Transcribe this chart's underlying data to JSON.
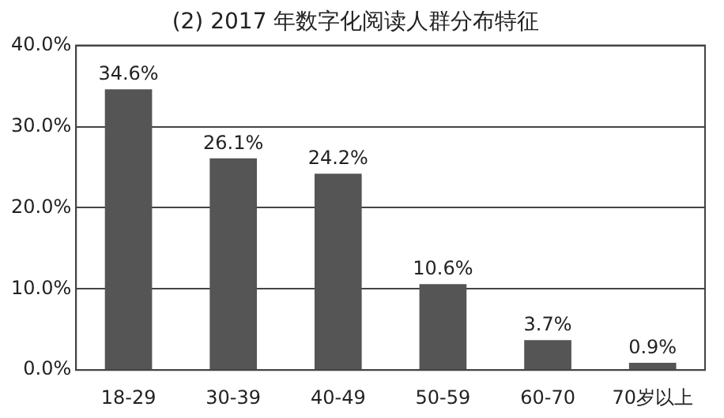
{
  "chart_data": {
    "type": "bar",
    "title": "(2) 2017 年数字化阅读人群分布特征",
    "categories": [
      "18-29",
      "30-39",
      "40-49",
      "50-59",
      "60-70",
      "70岁以上"
    ],
    "values": [
      34.6,
      26.1,
      24.2,
      10.6,
      3.7,
      0.9
    ],
    "value_labels": [
      "34.6%",
      "26.1%",
      "24.2%",
      "10.6%",
      "3.7%",
      "0.9%"
    ],
    "color": "#555555",
    "ylim": [
      0,
      40
    ],
    "yticks": [
      {
        "value": 0,
        "label": "0.0%"
      },
      {
        "value": 10,
        "label": "10.0%"
      },
      {
        "value": 20,
        "label": "20.0%"
      },
      {
        "value": 30,
        "label": "30.0%"
      },
      {
        "value": 40,
        "label": "40.0%"
      }
    ],
    "grid": "y"
  }
}
